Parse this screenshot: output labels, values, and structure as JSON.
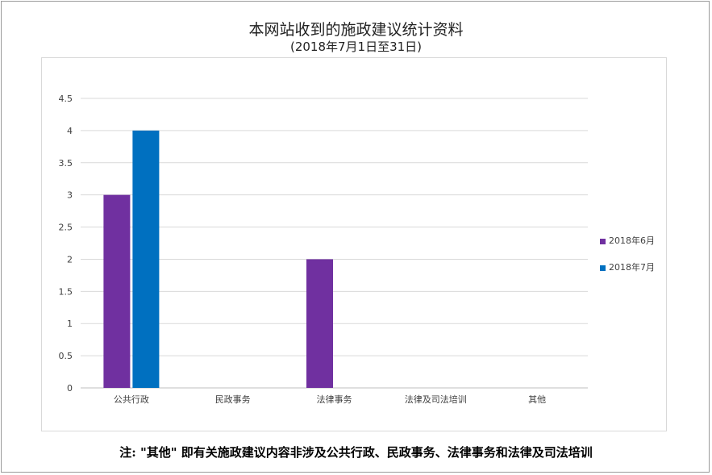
{
  "chart_data": {
    "type": "bar",
    "title": "本网站收到的施政建议统计资料",
    "subtitle": "(2018年7月1日至31日)",
    "categories": [
      "公共行政",
      "民政事务",
      "法律事务",
      "法律及司法培训",
      "其他"
    ],
    "series": [
      {
        "name": "2018年6月",
        "values": [
          3,
          0,
          2,
          0,
          0
        ],
        "color": "#7030a0"
      },
      {
        "name": "2018年7月",
        "values": [
          4,
          0,
          0,
          0,
          0
        ],
        "color": "#0070c0"
      }
    ],
    "ylim": [
      0,
      4.5
    ],
    "yticks": [
      "0",
      "0.5",
      "1",
      "1.5",
      "2",
      "2.5",
      "3",
      "3.5",
      "4",
      "4.5"
    ],
    "grid": true,
    "legend_position": "right"
  },
  "note": "注: \"其他\" 即有关施政建议内容非涉及公共行政、民政事务、法律事务和法律及司法培训"
}
